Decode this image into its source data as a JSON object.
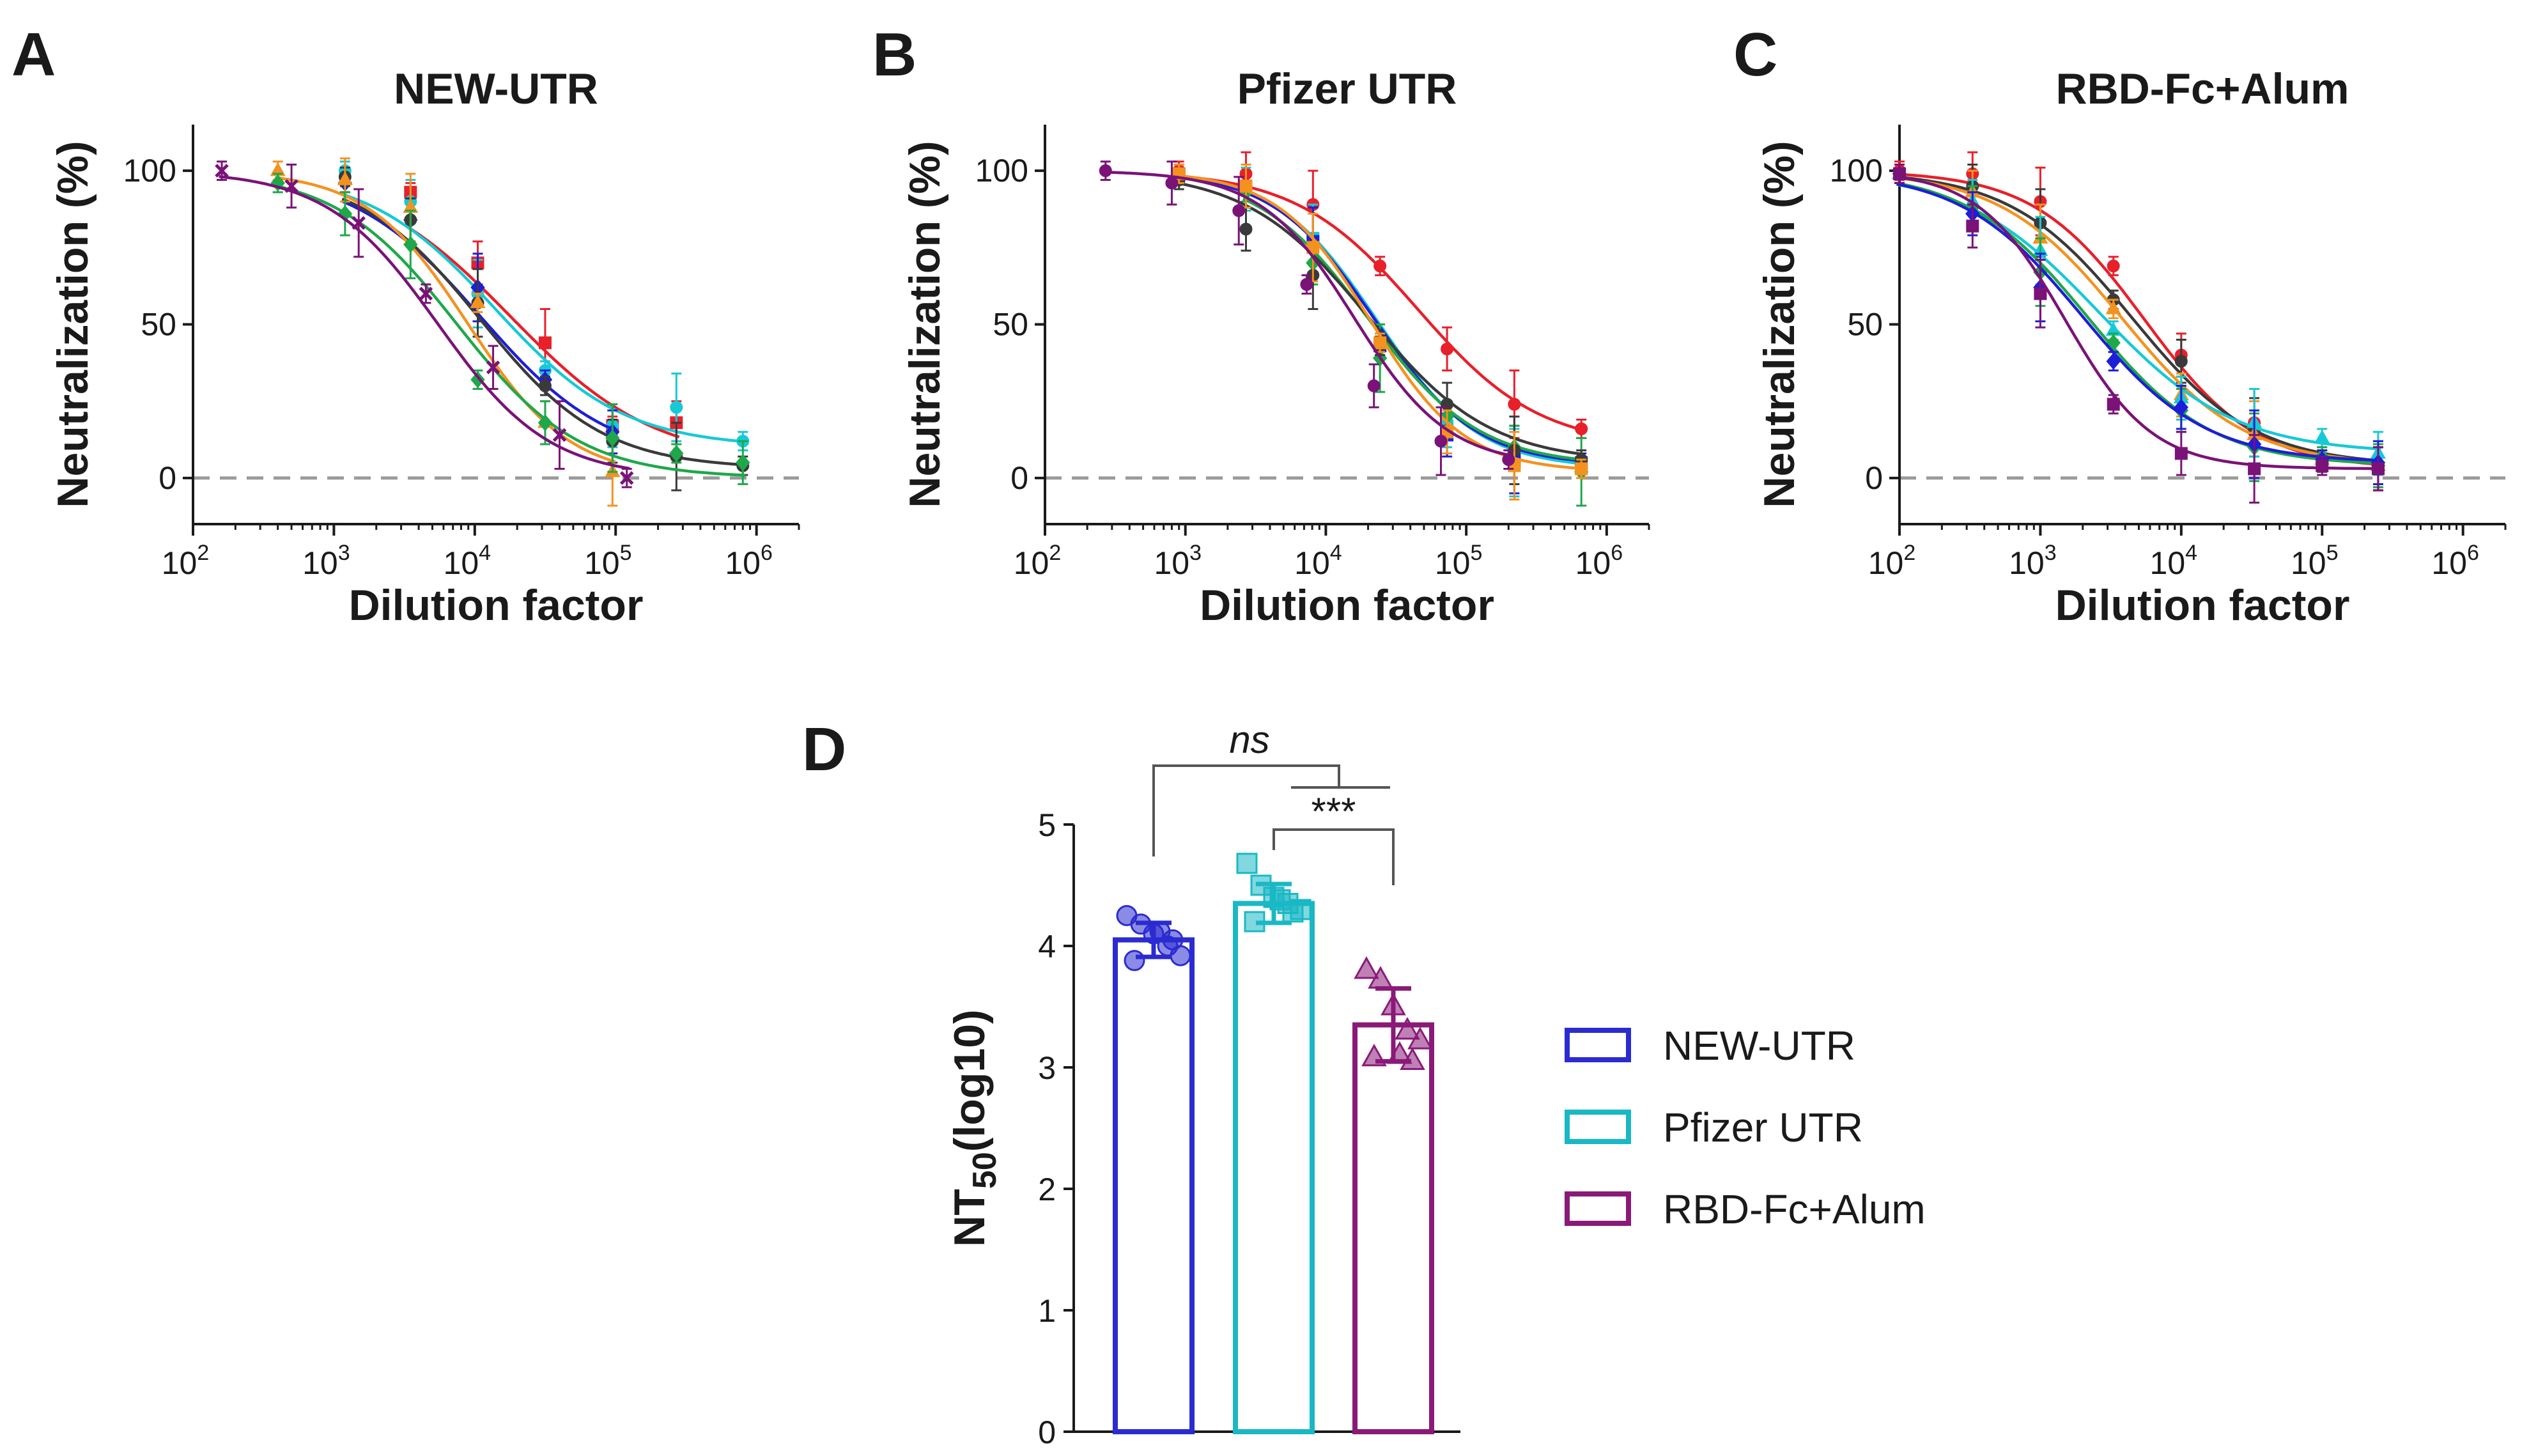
{
  "panels": {
    "A": {
      "letter": "A",
      "title": "NEW-UTR"
    },
    "B": {
      "letter": "B",
      "title": "Pfizer UTR"
    },
    "C": {
      "letter": "C",
      "title": "RBD-Fc+Alum"
    },
    "D": {
      "letter": "D"
    }
  },
  "chart_data": [
    {
      "id": "A",
      "type": "line",
      "title": "NEW-UTR",
      "xlabel": "Dilution factor",
      "ylabel": "Neutralization (%)",
      "xscale": "log10",
      "xlim": [
        100,
        2000000
      ],
      "ylim": [
        -15,
        115
      ],
      "xticks": [
        {
          "base": "10",
          "exp": "2"
        },
        {
          "base": "10",
          "exp": "3"
        },
        {
          "base": "10",
          "exp": "4"
        },
        {
          "base": "10",
          "exp": "5"
        },
        {
          "base": "10",
          "exp": "6"
        }
      ],
      "yticks": [
        "0",
        "50",
        "100"
      ],
      "zero_line": "dashed",
      "series": [
        {
          "color": "#e8202a",
          "marker": "square",
          "ec50": 18000,
          "hill": 0.85,
          "bottom": 5,
          "x": [
            3500,
            10500,
            31600,
            95000,
            270000
          ],
          "y": [
            93,
            70,
            44,
            17,
            18
          ]
        },
        {
          "color": "#17c9d6",
          "marker": "circle",
          "ec50": 14000,
          "hill": 0.95,
          "bottom": 10,
          "x": [
            1200,
            3500,
            10500,
            31600,
            95000,
            270000,
            800000
          ],
          "y": [
            100,
            90,
            60,
            35,
            17,
            23,
            12
          ]
        },
        {
          "color": "#1e1ed8",
          "marker": "diamond",
          "ec50": 11000,
          "hill": 0.95,
          "bottom": 5,
          "x": [
            1200,
            3500,
            10500,
            31600,
            95000
          ],
          "y": [
            96,
            84,
            62,
            32,
            15
          ]
        },
        {
          "color": "#3a3a3a",
          "marker": "circle",
          "ec50": 11000,
          "hill": 1.0,
          "bottom": 3,
          "x": [
            1200,
            3500,
            10500,
            31600,
            95000,
            270000,
            800000
          ],
          "y": [
            98,
            84,
            57,
            30,
            12,
            7,
            4
          ]
        },
        {
          "color": "#f4921f",
          "marker": "triangle",
          "ec50": 9000,
          "hill": 1.2,
          "bottom": 0,
          "x": [
            400,
            1200,
            3500,
            10500,
            31600,
            95000
          ],
          "y": [
            100,
            97,
            88,
            57,
            18,
            2
          ]
        },
        {
          "color": "#1ea84a",
          "marker": "diamond",
          "ec50": 7500,
          "hill": 1.0,
          "bottom": 0,
          "x": [
            400,
            1200,
            3500,
            10500,
            31600,
            95000,
            270000,
            800000
          ],
          "y": [
            96,
            86,
            76,
            32,
            18,
            13,
            8,
            5
          ]
        },
        {
          "color": "#7a1278",
          "marker": "cross",
          "ec50": 5500,
          "hill": 1.1,
          "bottom": 0,
          "x": [
            160,
            500,
            1500,
            4500,
            13500,
            40000,
            120000
          ],
          "y": [
            100,
            95,
            83,
            60,
            36,
            14,
            0
          ]
        }
      ]
    },
    {
      "id": "B",
      "type": "line",
      "title": "Pfizer UTR",
      "xlabel": "Dilution factor",
      "ylabel": "Neutralization (%)",
      "xscale": "log10",
      "xlim": [
        100,
        2000000
      ],
      "ylim": [
        -15,
        115
      ],
      "xticks": [
        {
          "base": "10",
          "exp": "2"
        },
        {
          "base": "10",
          "exp": "3"
        },
        {
          "base": "10",
          "exp": "4"
        },
        {
          "base": "10",
          "exp": "5"
        },
        {
          "base": "10",
          "exp": "6"
        }
      ],
      "yticks": [
        "0",
        "50",
        "100"
      ],
      "zero_line": "dashed",
      "series": [
        {
          "color": "#e8202a",
          "marker": "circle",
          "ec50": 45000,
          "hill": 1.0,
          "bottom": 10,
          "x": [
            900,
            2700,
            8100,
            24300,
            73000,
            220000,
            660000
          ],
          "y": [
            100,
            99,
            89,
            69,
            42,
            24,
            16
          ]
        },
        {
          "color": "#17c9d6",
          "marker": "square",
          "ec50": 23000,
          "hill": 1.2,
          "bottom": 3,
          "x": [
            900,
            2700,
            8100,
            24300,
            73000,
            220000,
            660000
          ],
          "y": [
            99,
            94,
            78,
            44,
            17,
            5,
            3
          ]
        },
        {
          "color": "#1e1ed8",
          "marker": "square",
          "ec50": 22000,
          "hill": 1.2,
          "bottom": 4,
          "x": [
            900,
            2700,
            8100,
            24300,
            73000,
            220000,
            660000
          ],
          "y": [
            99,
            95,
            77,
            43,
            14,
            6,
            5
          ]
        },
        {
          "color": "#1ea84a",
          "marker": "diamond",
          "ec50": 20000,
          "hill": 1.1,
          "bottom": 4,
          "x": [
            2700,
            8100,
            24300,
            73000,
            220000,
            660000
          ],
          "y": [
            93,
            70,
            39,
            20,
            10,
            2
          ]
        },
        {
          "color": "#3a3a3a",
          "marker": "circle",
          "ec50": 20000,
          "hill": 1.0,
          "bottom": 5,
          "x": [
            900,
            2700,
            8100,
            24300,
            73000,
            220000,
            660000
          ],
          "y": [
            97,
            81,
            66,
            43,
            24,
            9,
            6
          ]
        },
        {
          "color": "#f4921f",
          "marker": "square",
          "ec50": 21000,
          "hill": 1.3,
          "bottom": 2,
          "x": [
            900,
            2700,
            8100,
            24300,
            73000,
            220000,
            660000
          ],
          "y": [
            99,
            95,
            75,
            44,
            15,
            4,
            3
          ]
        },
        {
          "color": "#7a1278",
          "marker": "circle",
          "ec50": 16000,
          "hill": 1.3,
          "bottom": 4,
          "x": [
            270,
            800,
            2400,
            7300,
            22000,
            66000,
            200000
          ],
          "y": [
            100,
            96,
            87,
            63,
            30,
            12,
            6
          ]
        }
      ]
    },
    {
      "id": "C",
      "type": "line",
      "title": "RBD-Fc+Alum",
      "xlabel": "Dilution factor",
      "ylabel": "Neutralization (%)",
      "xscale": "log10",
      "xlim": [
        100,
        2000000
      ],
      "ylim": [
        -15,
        115
      ],
      "xticks": [
        {
          "base": "10",
          "exp": "2"
        },
        {
          "base": "10",
          "exp": "3"
        },
        {
          "base": "10",
          "exp": "4"
        },
        {
          "base": "10",
          "exp": "5"
        },
        {
          "base": "10",
          "exp": "6"
        }
      ],
      "yticks": [
        "0",
        "50",
        "100"
      ],
      "zero_line": "dashed",
      "series": [
        {
          "color": "#e8202a",
          "marker": "circle",
          "ec50": 5500,
          "hill": 1.1,
          "bottom": 3,
          "x": [
            100,
            330,
            1000,
            3300,
            10000,
            33000,
            100000,
            250000
          ],
          "y": [
            100,
            99,
            90,
            69,
            40,
            18,
            6,
            3
          ]
        },
        {
          "color": "#3a3a3a",
          "marker": "circle",
          "ec50": 4500,
          "hill": 1.0,
          "bottom": 4,
          "x": [
            100,
            330,
            1000,
            3300,
            10000,
            33000,
            100000,
            250000
          ],
          "y": [
            99,
            95,
            83,
            58,
            38,
            15,
            5,
            3
          ]
        },
        {
          "color": "#f4921f",
          "marker": "triangle",
          "ec50": 3800,
          "hill": 1.0,
          "bottom": 4,
          "x": [
            100,
            330,
            1000,
            3300,
            10000,
            33000,
            100000,
            250000
          ],
          "y": [
            99,
            93,
            78,
            55,
            27,
            14,
            6,
            4
          ]
        },
        {
          "color": "#17c9d6",
          "marker": "triangle",
          "ec50": 2600,
          "hill": 0.9,
          "bottom": 8,
          "x": [
            100,
            330,
            1000,
            3300,
            10000,
            33000,
            100000,
            250000
          ],
          "y": [
            99,
            90,
            74,
            48,
            26,
            18,
            13,
            8
          ]
        },
        {
          "color": "#1ea84a",
          "marker": "diamond",
          "ec50": 2200,
          "hill": 1.0,
          "bottom": 4,
          "x": [
            100,
            330,
            1000,
            3300,
            10000,
            33000,
            100000,
            250000
          ],
          "y": [
            99,
            88,
            67,
            44,
            22,
            10,
            7,
            4
          ]
        },
        {
          "color": "#1e1ed8",
          "marker": "diamond",
          "ec50": 2000,
          "hill": 1.0,
          "bottom": 5,
          "x": [
            100,
            330,
            1000,
            3300,
            10000,
            33000,
            100000,
            250000
          ],
          "y": [
            99,
            86,
            62,
            38,
            23,
            11,
            6,
            5
          ]
        },
        {
          "color": "#7a1278",
          "marker": "square",
          "ec50": 1500,
          "hill": 1.4,
          "bottom": 3,
          "x": [
            100,
            330,
            1000,
            3300,
            10000,
            33000,
            100000,
            250000
          ],
          "y": [
            99,
            82,
            60,
            24,
            8,
            3,
            4,
            3
          ]
        }
      ]
    },
    {
      "id": "D",
      "type": "bar",
      "ylabel": "NT",
      "ylabel_sub": "50",
      "ylabel_suffix": "(log10)",
      "ylim": [
        0,
        5
      ],
      "yticks": [
        "0",
        "1",
        "2",
        "3",
        "4",
        "5"
      ],
      "categories": [
        "NEW-UTR",
        "Pfizer UTR",
        "RBD-Fc+Alum"
      ],
      "series": [
        {
          "name": "NEW-UTR",
          "color": "#2b2bd1",
          "marker": "circle",
          "mean": 4.05,
          "sd": 0.14,
          "points": [
            4.25,
            4.18,
            4.1,
            4.0,
            3.92,
            3.88,
            4.05,
            4.12
          ]
        },
        {
          "name": "Pfizer UTR",
          "color": "#1ab8c4",
          "marker": "square",
          "mean": 4.35,
          "sd": 0.16,
          "points": [
            4.68,
            4.5,
            4.4,
            4.35,
            4.3,
            4.2,
            4.28,
            4.38
          ]
        },
        {
          "name": "RBD-Fc+Alum",
          "color": "#8a1a78",
          "marker": "triangle",
          "mean": 3.35,
          "sd": 0.3,
          "points": [
            3.8,
            3.72,
            3.5,
            3.3,
            3.22,
            3.08,
            3.05,
            3.1
          ]
        }
      ],
      "comparisons": [
        {
          "from": "NEW-UTR",
          "to": "Pfizer UTR + RBD-Fc+Alum",
          "label": "ns"
        },
        {
          "from": "Pfizer UTR",
          "to": "RBD-Fc+Alum",
          "label": "***"
        }
      ],
      "legend": [
        "NEW-UTR",
        "Pfizer UTR",
        "RBD-Fc+Alum"
      ]
    }
  ]
}
